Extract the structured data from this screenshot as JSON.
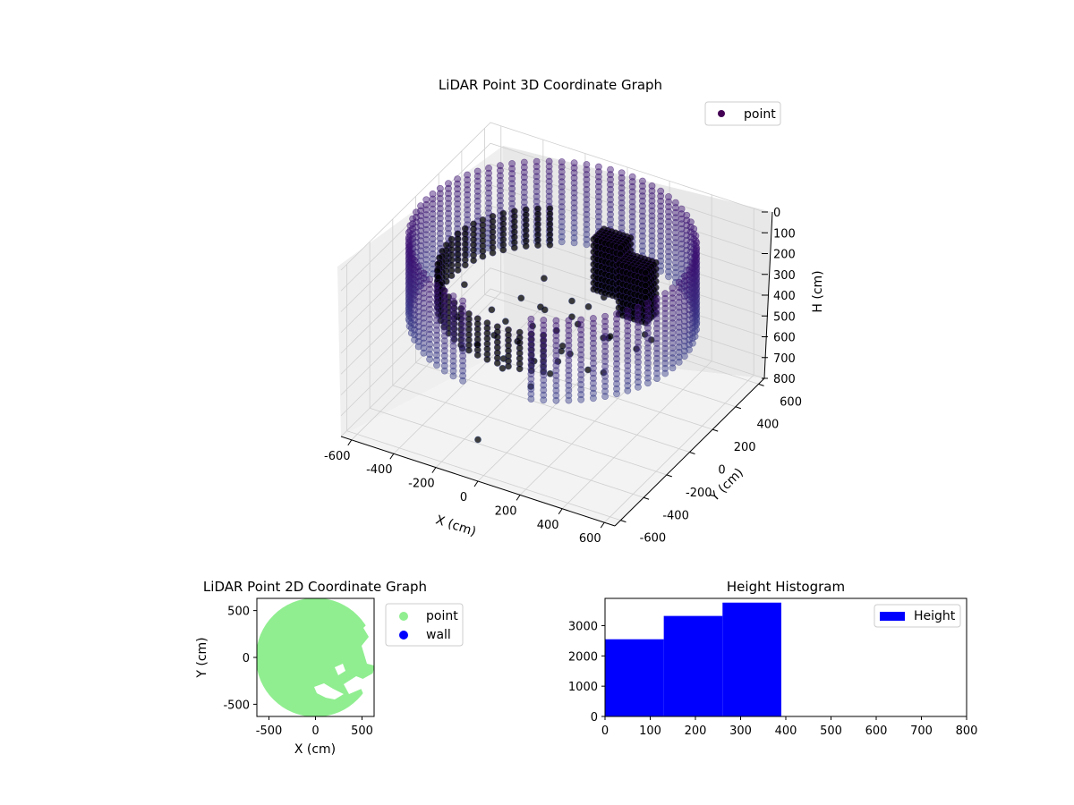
{
  "chart_data": [
    {
      "type": "scatter",
      "projection": "3d",
      "title": "LiDAR Point 3D Coordinate Graph",
      "xlabel": "X (cm)",
      "ylabel": "Y (cm)",
      "zlabel": "H (cm)",
      "xlim": [
        -650,
        650
      ],
      "ylim": [
        -650,
        650
      ],
      "zlim": [
        800,
        0
      ],
      "xticks": [
        -600,
        -400,
        -200,
        0,
        200,
        400,
        600
      ],
      "yticks": [
        -600,
        -400,
        -200,
        0,
        200,
        400,
        600
      ],
      "zticks": [
        0,
        100,
        200,
        300,
        400,
        500,
        600,
        700,
        800
      ],
      "legend": [
        "point"
      ],
      "legend_loc": "upper right",
      "grid": true,
      "colormap": "viridis",
      "structure": {
        "wall_radius": 600,
        "wall_height_range": [
          0,
          400
        ],
        "inner_ring_radius": 480,
        "inner_ring_height_range": [
          150,
          330
        ],
        "objects": [
          {
            "x": 150,
            "y": 260,
            "h_top": 80
          },
          {
            "x": 330,
            "y": 150,
            "h_top": 80
          }
        ],
        "outliers": [
          {
            "x": -150,
            "y": 350,
            "h": 770
          },
          {
            "x": 0,
            "y": -650,
            "h": 600
          }
        ]
      }
    },
    {
      "type": "scatter",
      "title": "LiDAR Point 2D Coordinate Graph",
      "xlabel": "X (cm)",
      "ylabel": "Y (cm)",
      "xlim": [
        -630,
        630
      ],
      "ylim": [
        -630,
        630
      ],
      "xticks": [
        -500,
        0,
        500
      ],
      "yticks": [
        500,
        0,
        -500
      ],
      "legend": [
        "point",
        "wall"
      ],
      "legend_loc": "outside right",
      "colors": {
        "point": "#90ee90",
        "wall": "#0000ff"
      },
      "region": {
        "shape": "disc",
        "radius": 640
      }
    },
    {
      "type": "histogram",
      "title": "Height Histogram",
      "legend": [
        "Height"
      ],
      "legend_loc": "upper right",
      "color": "#0000ff",
      "xlim": [
        0,
        800
      ],
      "ylim": [
        0,
        3900
      ],
      "xticks": [
        0,
        100,
        200,
        300,
        400,
        500,
        600,
        700,
        800
      ],
      "yticks": [
        0,
        1000,
        2000,
        3000
      ],
      "bins": [
        {
          "x0": 0,
          "x1": 130,
          "count": 2550
        },
        {
          "x0": 130,
          "x1": 260,
          "count": 3320
        },
        {
          "x0": 260,
          "x1": 390,
          "count": 3760
        }
      ]
    }
  ]
}
